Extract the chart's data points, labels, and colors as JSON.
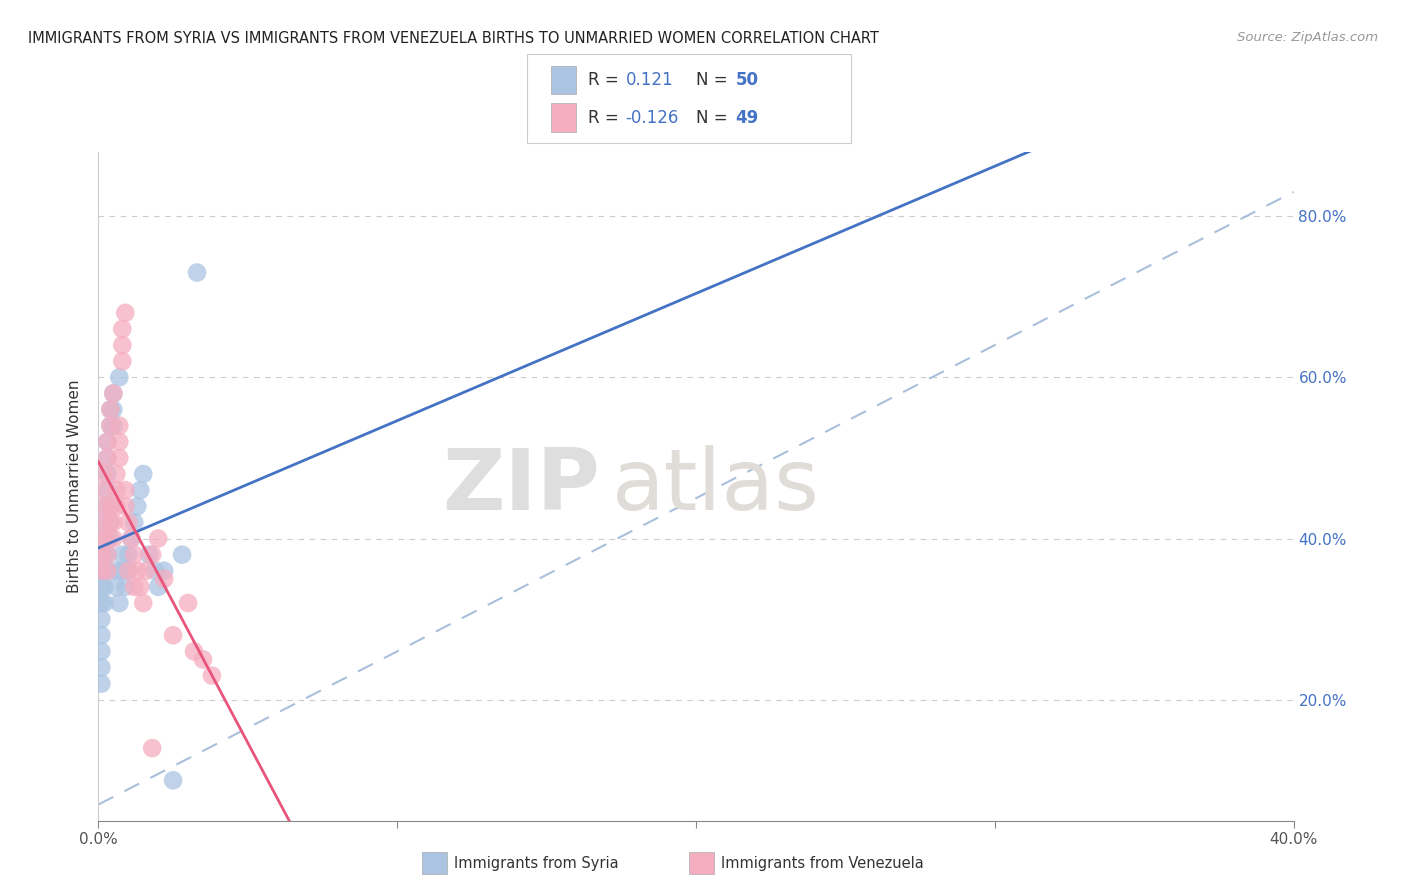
{
  "title": "IMMIGRANTS FROM SYRIA VS IMMIGRANTS FROM VENEZUELA BIRTHS TO UNMARRIED WOMEN CORRELATION CHART",
  "source": "Source: ZipAtlas.com",
  "ylabel": "Births to Unmarried Women",
  "legend_syria_r": "0.121",
  "legend_syria_n": "50",
  "legend_venezuela_r": "-0.126",
  "legend_venezuela_n": "49",
  "xlim": [
    0.0,
    0.04
  ],
  "ylim": [
    0.05,
    0.85
  ],
  "xtick_vals": [
    0.0,
    0.01,
    0.02,
    0.03,
    0.04
  ],
  "xtick_labels": [
    "0.0%",
    "",
    "",
    "",
    ""
  ],
  "ytick_vals": [
    0.2,
    0.4,
    0.6,
    0.8
  ],
  "ytick_labels": [
    "20.0%",
    "40.0%",
    "60.0%",
    "80.0%"
  ],
  "right_ytick_vals": [
    0.2,
    0.4,
    0.6,
    0.8
  ],
  "right_ytick_labels": [
    "20.0%",
    "40.0%",
    "60.0%",
    "80.0%"
  ],
  "color_syria": "#aac4e2",
  "color_venezuela": "#f5adc0",
  "color_syria_line": "#4472c4",
  "color_venezuela_line": "#e8547a",
  "color_dashed": "#a0b8d8",
  "watermark_zip": "ZIP",
  "watermark_atlas": "atlas",
  "background_color": "#ffffff",
  "syria_x": [
    0.001,
    0.001,
    0.001,
    0.001,
    0.001,
    0.001,
    0.001,
    0.001,
    0.002,
    0.002,
    0.002,
    0.002,
    0.002,
    0.002,
    0.002,
    0.003,
    0.003,
    0.003,
    0.003,
    0.003,
    0.003,
    0.004,
    0.004,
    0.004,
    0.004,
    0.004,
    0.005,
    0.005,
    0.005,
    0.006,
    0.006,
    0.007,
    0.007,
    0.008,
    0.008,
    0.009,
    0.01,
    0.01,
    0.011,
    0.012,
    0.013,
    0.014,
    0.015,
    0.017,
    0.019,
    0.02,
    0.022,
    0.025,
    0.028,
    0.033
  ],
  "syria_y": [
    0.3,
    0.32,
    0.28,
    0.34,
    0.36,
    0.26,
    0.24,
    0.22,
    0.38,
    0.4,
    0.36,
    0.34,
    0.32,
    0.42,
    0.44,
    0.46,
    0.48,
    0.5,
    0.38,
    0.36,
    0.52,
    0.54,
    0.56,
    0.44,
    0.42,
    0.4,
    0.58,
    0.56,
    0.54,
    0.36,
    0.34,
    0.32,
    0.6,
    0.38,
    0.36,
    0.34,
    0.36,
    0.38,
    0.4,
    0.42,
    0.44,
    0.46,
    0.48,
    0.38,
    0.36,
    0.34,
    0.36,
    0.1,
    0.38,
    0.73
  ],
  "venezuela_x": [
    0.001,
    0.001,
    0.001,
    0.002,
    0.002,
    0.002,
    0.002,
    0.003,
    0.003,
    0.003,
    0.003,
    0.003,
    0.004,
    0.004,
    0.004,
    0.004,
    0.005,
    0.005,
    0.005,
    0.006,
    0.006,
    0.006,
    0.007,
    0.007,
    0.007,
    0.008,
    0.008,
    0.009,
    0.009,
    0.01,
    0.011,
    0.012,
    0.013,
    0.014,
    0.016,
    0.018,
    0.02,
    0.022,
    0.03,
    0.035,
    0.038,
    0.008,
    0.009,
    0.01,
    0.012,
    0.015,
    0.018,
    0.025,
    0.032
  ],
  "venezuela_y": [
    0.38,
    0.4,
    0.36,
    0.42,
    0.44,
    0.46,
    0.48,
    0.5,
    0.52,
    0.38,
    0.4,
    0.36,
    0.54,
    0.56,
    0.44,
    0.42,
    0.58,
    0.4,
    0.42,
    0.44,
    0.46,
    0.48,
    0.5,
    0.52,
    0.54,
    0.62,
    0.64,
    0.44,
    0.46,
    0.42,
    0.4,
    0.38,
    0.36,
    0.34,
    0.36,
    0.38,
    0.4,
    0.35,
    0.32,
    0.25,
    0.23,
    0.66,
    0.68,
    0.36,
    0.34,
    0.32,
    0.14,
    0.28,
    0.26
  ]
}
